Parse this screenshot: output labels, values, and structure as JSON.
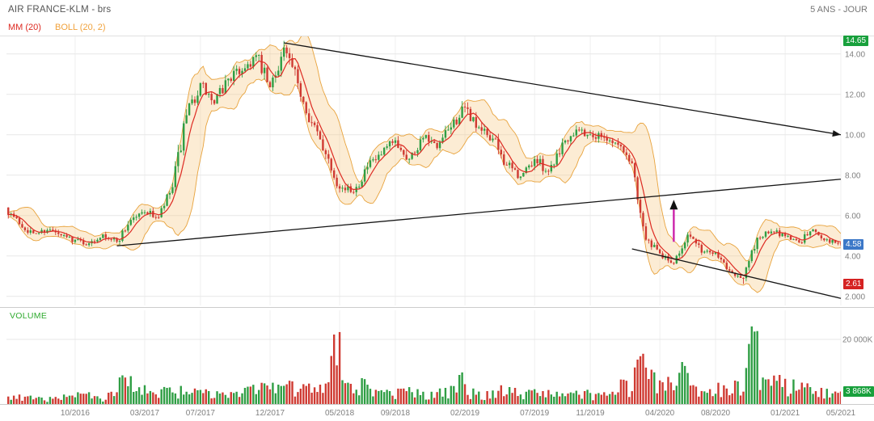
{
  "header": {
    "title": "AIR FRANCE-KLM - brs",
    "timeframe": "5 ANS - JOUR"
  },
  "legend": {
    "mm": "MM (20)",
    "boll": "BOLL (20, 2)"
  },
  "badges": {
    "high": "14.65",
    "last": "4.58",
    "low": "2.61",
    "volume": "3 868K"
  },
  "volume_panel": {
    "label": "VOLUME",
    "tick_label": "20 000K",
    "tick_value": 20000
  },
  "colors": {
    "up": "#2f9e44",
    "down": "#cf3a32",
    "mm_line": "#dd2a22",
    "boll_edge": "#e8a33d",
    "boll_fill": "rgba(247,196,120,0.32)",
    "trend": "#151515",
    "annotation_magenta": "#cc22aa",
    "grid": "#e7e7e7",
    "grid_v": "#efefef",
    "axis_text": "#808080",
    "badge_high": "#18a03c",
    "badge_last": "#3c78c8",
    "badge_low": "#d52222",
    "badge_vol": "#18a03c"
  },
  "chart_data": {
    "type": "candlestick",
    "title": "AIR FRANCE-KLM - brs",
    "timeframe": "5 ANS - JOUR",
    "overlays": [
      "MM (20)",
      "BOLL (20, 2)"
    ],
    "ylim": [
      1.55,
      14.87
    ],
    "period_high": 14.65,
    "last_price": 4.58,
    "period_low": 2.61,
    "last_volume_k": 3868,
    "y_ticks": [
      {
        "p": 14,
        "label": "14.00"
      },
      {
        "p": 12,
        "label": "12.00"
      },
      {
        "p": 10,
        "label": "10.00"
      },
      {
        "p": 8,
        "label": "8.00"
      },
      {
        "p": 6,
        "label": "6.00"
      },
      {
        "p": 4,
        "label": "4.00"
      },
      {
        "p": 2,
        "label": "2.000"
      }
    ],
    "x_ticks": [
      "10/2016",
      "03/2017",
      "07/2017",
      "12/2017",
      "05/2018",
      "09/2018",
      "02/2019",
      "07/2019",
      "11/2019",
      "04/2020",
      "08/2020",
      "01/2021",
      "05/2021"
    ],
    "volume_axis": {
      "tick_value": 20000,
      "tick_label": "20 000K",
      "max": 25000
    },
    "monthly": [
      {
        "month": "06/2016",
        "close": 5.6,
        "vol_k": 2600
      },
      {
        "month": "07/2016",
        "close": 5.1,
        "vol_k": 2400
      },
      {
        "month": "08/2016",
        "close": 5.3,
        "vol_k": 2000
      },
      {
        "month": "09/2016",
        "close": 5.0,
        "vol_k": 2200
      },
      {
        "month": "10/2016",
        "close": 4.8,
        "vol_k": 2600
      },
      {
        "month": "11/2016",
        "close": 4.6,
        "vol_k": 3200
      },
      {
        "month": "12/2016",
        "close": 5.1,
        "vol_k": 2400
      },
      {
        "month": "01/2017",
        "close": 4.7,
        "vol_k": 3800
      },
      {
        "month": "02/2017",
        "close": 5.8,
        "vol_k": 8200
      },
      {
        "month": "03/2017",
        "close": 6.2,
        "vol_k": 5200
      },
      {
        "month": "04/2017",
        "close": 5.9,
        "vol_k": 3600
      },
      {
        "month": "05/2017",
        "close": 7.4,
        "vol_k": 5000
      },
      {
        "month": "06/2017",
        "close": 10.9,
        "vol_k": 5600
      },
      {
        "month": "07/2017",
        "close": 12.5,
        "vol_k": 4800
      },
      {
        "month": "08/2017",
        "close": 11.5,
        "vol_k": 4000
      },
      {
        "month": "09/2017",
        "close": 12.8,
        "vol_k": 3600
      },
      {
        "month": "10/2017",
        "close": 13.2,
        "vol_k": 3800
      },
      {
        "month": "11/2017",
        "close": 13.9,
        "vol_k": 5400
      },
      {
        "month": "12/2017",
        "close": 12.3,
        "vol_k": 6400
      },
      {
        "month": "01/2018",
        "close": 14.3,
        "vol_k": 6000
      },
      {
        "month": "02/2018",
        "close": 12.5,
        "vol_k": 7000
      },
      {
        "month": "03/2018",
        "close": 10.6,
        "vol_k": 5600
      },
      {
        "month": "04/2018",
        "close": 9.1,
        "vol_k": 6000
      },
      {
        "month": "05/2018",
        "close": 7.4,
        "vol_k": 21500
      },
      {
        "month": "06/2018",
        "close": 7.2,
        "vol_k": 6600
      },
      {
        "month": "07/2018",
        "close": 8.4,
        "vol_k": 8000
      },
      {
        "month": "08/2018",
        "close": 9.0,
        "vol_k": 4400
      },
      {
        "month": "09/2018",
        "close": 9.7,
        "vol_k": 4000
      },
      {
        "month": "10/2018",
        "close": 8.8,
        "vol_k": 4800
      },
      {
        "month": "11/2018",
        "close": 9.9,
        "vol_k": 4600
      },
      {
        "month": "12/2018",
        "close": 9.3,
        "vol_k": 3800
      },
      {
        "month": "01/2019",
        "close": 10.4,
        "vol_k": 5000
      },
      {
        "month": "02/2019",
        "close": 11.3,
        "vol_k": 9000
      },
      {
        "month": "03/2019",
        "close": 10.3,
        "vol_k": 4800
      },
      {
        "month": "04/2019",
        "close": 9.8,
        "vol_k": 4000
      },
      {
        "month": "05/2019",
        "close": 8.5,
        "vol_k": 5800
      },
      {
        "month": "06/2019",
        "close": 7.9,
        "vol_k": 5000
      },
      {
        "month": "07/2019",
        "close": 8.8,
        "vol_k": 4400
      },
      {
        "month": "08/2019",
        "close": 8.2,
        "vol_k": 4000
      },
      {
        "month": "09/2019",
        "close": 9.6,
        "vol_k": 3800
      },
      {
        "month": "10/2019",
        "close": 10.3,
        "vol_k": 3600
      },
      {
        "month": "11/2019",
        "close": 10.0,
        "vol_k": 4000
      },
      {
        "month": "12/2019",
        "close": 9.9,
        "vol_k": 3400
      },
      {
        "month": "01/2020",
        "close": 9.5,
        "vol_k": 3800
      },
      {
        "month": "02/2020",
        "close": 8.6,
        "vol_k": 7200
      },
      {
        "month": "03/2020",
        "close": 4.8,
        "vol_k": 14800
      },
      {
        "month": "04/2020",
        "close": 4.1,
        "vol_k": 9800
      },
      {
        "month": "05/2020",
        "close": 3.6,
        "vol_k": 8400
      },
      {
        "month": "06/2020",
        "close": 5.1,
        "vol_k": 13000
      },
      {
        "month": "07/2020",
        "close": 4.2,
        "vol_k": 5400
      },
      {
        "month": "08/2020",
        "close": 4.2,
        "vol_k": 4600
      },
      {
        "month": "09/2020",
        "close": 3.3,
        "vol_k": 5800
      },
      {
        "month": "10/2020",
        "close": 2.9,
        "vol_k": 7000
      },
      {
        "month": "11/2020",
        "close": 4.9,
        "vol_k": 24000
      },
      {
        "month": "12/2020",
        "close": 5.2,
        "vol_k": 7600
      },
      {
        "month": "01/2021",
        "close": 5.0,
        "vol_k": 9000
      },
      {
        "month": "02/2021",
        "close": 4.7,
        "vol_k": 7600
      },
      {
        "month": "03/2021",
        "close": 5.3,
        "vol_k": 6400
      },
      {
        "month": "04/2021",
        "close": 4.8,
        "vol_k": 5000
      },
      {
        "month": "05/2021",
        "close": 4.58,
        "vol_k": 3868
      }
    ],
    "trend_lines": [
      {
        "x1": "01/2018",
        "p1": 14.55,
        "x2": "edge",
        "p2": 10.0,
        "arrow": true
      },
      {
        "x1": "01/2017",
        "p1": 4.5,
        "x2": "edge",
        "p2": 7.8,
        "arrow": false
      },
      {
        "x1": "02/2020",
        "p1": 4.35,
        "x2": "edge",
        "p2": 1.9,
        "arrow": false
      }
    ],
    "buy_arrow": {
      "month": "05/2020",
      "from_price": 4.7,
      "to_price": 6.3
    }
  }
}
